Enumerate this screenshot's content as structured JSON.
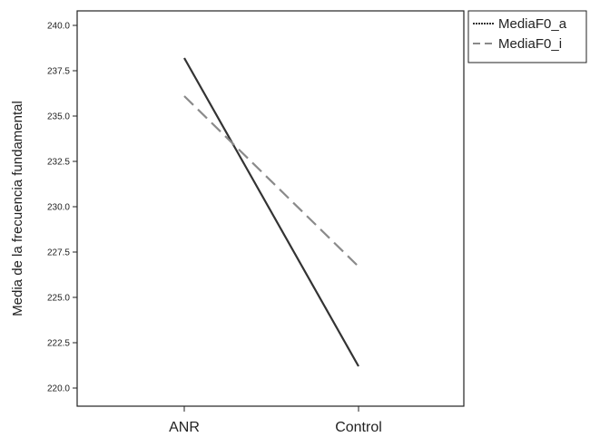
{
  "chart_data": {
    "type": "line",
    "categories": [
      "ANR",
      "Control"
    ],
    "series": [
      {
        "name": "MediaF0_a",
        "values": [
          238.2,
          221.2
        ],
        "color": "#333333",
        "style": "solid"
      },
      {
        "name": "MediaF0_i",
        "values": [
          236.1,
          226.7
        ],
        "color": "#8a8a8a",
        "style": "dashed"
      }
    ],
    "yticks": [
      "220.0",
      "222.5",
      "225.0",
      "227.5",
      "230.0",
      "232.5",
      "235.0",
      "237.5",
      "240.0"
    ],
    "ylim": [
      219.0,
      240.8
    ],
    "ylabel": "Media de la frecuencia fundamental",
    "xlabel": "",
    "legend": "outside-top-right",
    "grid": false
  }
}
